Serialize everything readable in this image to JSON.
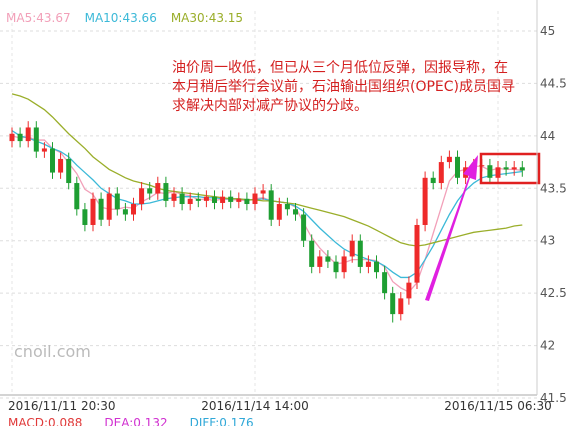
{
  "chart_data": {
    "type": "candlestick",
    "ylim": [
      41.5,
      45
    ],
    "yticks": [
      45,
      44.5,
      44,
      43.5,
      43,
      42.5,
      42,
      41.5
    ],
    "up_color": "#ee2a2a",
    "down_color": "#1e9e32",
    "categories": [
      "2016/11/11 20:30",
      null,
      null,
      null,
      null,
      null,
      null,
      null,
      null,
      null,
      null,
      null,
      null,
      null,
      null,
      null,
      null,
      null,
      null,
      null,
      null,
      null,
      null,
      null,
      null,
      null,
      null,
      null,
      null,
      null,
      "2016/11/14 14:00",
      null,
      null,
      null,
      null,
      null,
      null,
      null,
      null,
      null,
      null,
      null,
      null,
      null,
      null,
      null,
      null,
      null,
      null,
      null,
      null,
      null,
      null,
      null,
      null,
      null,
      null,
      null,
      null,
      null,
      "2016/11/15 06:30",
      null,
      null,
      null
    ],
    "open": [
      43.95,
      44.02,
      43.95,
      44.08,
      43.85,
      43.88,
      43.65,
      43.78,
      43.55,
      43.3,
      43.15,
      43.4,
      43.2,
      43.45,
      43.3,
      43.25,
      43.35,
      43.5,
      43.45,
      43.55,
      43.38,
      43.45,
      43.35,
      43.4,
      43.38,
      43.42,
      43.36,
      43.42,
      43.37,
      43.4,
      43.35,
      43.45,
      43.48,
      43.2,
      43.35,
      43.3,
      43.25,
      43,
      42.75,
      42.85,
      42.8,
      42.7,
      42.85,
      43,
      42.75,
      42.8,
      42.7,
      42.5,
      42.3,
      42.45,
      42.6,
      43.15,
      43.6,
      43.55,
      43.75,
      43.8,
      43.6,
      43.7,
      43.72,
      43.72,
      43.6,
      43.7,
      43.68,
      43.7
    ],
    "high": [
      44.08,
      44.08,
      44.14,
      44.14,
      43.94,
      43.94,
      43.84,
      43.84,
      43.61,
      43.36,
      43.46,
      43.46,
      43.51,
      43.51,
      43.36,
      43.41,
      43.56,
      43.56,
      43.61,
      43.61,
      43.51,
      43.51,
      43.46,
      43.46,
      43.48,
      43.48,
      43.48,
      43.48,
      43.46,
      43.46,
      43.51,
      43.54,
      43.54,
      43.41,
      43.41,
      43.36,
      43.31,
      43.06,
      42.91,
      42.91,
      42.86,
      42.91,
      43.06,
      43.06,
      42.86,
      42.86,
      42.76,
      42.56,
      42.51,
      42.66,
      43.21,
      43.66,
      43.66,
      43.81,
      43.86,
      43.86,
      43.76,
      43.78,
      43.78,
      43.78,
      43.76,
      43.76,
      43.76,
      43.76
    ],
    "low": [
      43.89,
      43.89,
      43.89,
      43.79,
      43.79,
      43.59,
      43.59,
      43.49,
      43.24,
      43.09,
      43.09,
      43.14,
      43.14,
      43.24,
      43.19,
      43.19,
      43.29,
      43.39,
      43.39,
      43.32,
      43.32,
      43.29,
      43.29,
      43.32,
      43.32,
      43.3,
      43.3,
      43.31,
      43.31,
      43.29,
      43.29,
      43.39,
      43.14,
      43.14,
      43.24,
      43.19,
      42.94,
      42.69,
      42.69,
      42.74,
      42.64,
      42.64,
      42.79,
      42.69,
      42.69,
      42.64,
      42.44,
      42.22,
      42.24,
      42.39,
      42.54,
      43.09,
      43.49,
      43.49,
      43.69,
      43.54,
      43.54,
      43.64,
      43.66,
      43.54,
      43.54,
      43.62,
      43.62,
      43.61
    ],
    "close": [
      44.02,
      43.95,
      44.08,
      43.85,
      43.88,
      43.65,
      43.78,
      43.55,
      43.3,
      43.15,
      43.4,
      43.2,
      43.45,
      43.3,
      43.25,
      43.35,
      43.5,
      43.45,
      43.55,
      43.38,
      43.45,
      43.35,
      43.4,
      43.38,
      43.42,
      43.36,
      43.42,
      43.37,
      43.4,
      43.35,
      43.45,
      43.48,
      43.2,
      43.35,
      43.3,
      43.25,
      43,
      42.75,
      42.85,
      42.8,
      42.7,
      42.85,
      43,
      42.75,
      42.8,
      42.7,
      42.5,
      42.3,
      42.45,
      42.6,
      43.15,
      43.6,
      43.55,
      43.75,
      43.8,
      43.6,
      43.7,
      43.72,
      43.72,
      43.6,
      43.7,
      43.68,
      43.7,
      43.67
    ],
    "series": [
      {
        "name": "MA5:43.67",
        "color": "#f2a0b9",
        "values": [
          44.0,
          43.98,
          43.99,
          43.96,
          43.96,
          43.88,
          43.84,
          43.74,
          43.64,
          43.49,
          43.44,
          43.32,
          43.3,
          43.3,
          43.32,
          43.31,
          43.37,
          43.41,
          43.46,
          43.45,
          43.47,
          43.44,
          43.43,
          43.39,
          43.4,
          43.38,
          43.4,
          43.39,
          43.39,
          43.38,
          43.4,
          43.41,
          43.38,
          43.37,
          43.36,
          43.32,
          43.17,
          43.03,
          42.93,
          42.85,
          42.78,
          42.79,
          42.82,
          42.82,
          42.82,
          42.81,
          42.75,
          42.61,
          42.55,
          42.51,
          42.6,
          42.82,
          43.07,
          43.32,
          43.57,
          43.66,
          43.68,
          43.71,
          43.71,
          43.67,
          43.69,
          43.68,
          43.68,
          43.67
        ]
      },
      {
        "name": "MA10:43.66",
        "color": "#3cb9d8",
        "values": [
          44.05,
          44.0,
          43.98,
          43.95,
          43.92,
          43.88,
          43.85,
          43.8,
          43.72,
          43.65,
          43.58,
          43.5,
          43.45,
          43.4,
          43.38,
          43.35,
          43.35,
          43.36,
          43.38,
          43.4,
          43.41,
          43.42,
          43.42,
          43.42,
          43.41,
          43.41,
          43.4,
          43.4,
          43.4,
          43.39,
          43.39,
          43.4,
          43.38,
          43.37,
          43.36,
          43.33,
          43.28,
          43.2,
          43.12,
          43.05,
          42.98,
          42.92,
          42.88,
          42.85,
          42.82,
          42.8,
          42.76,
          42.7,
          42.65,
          42.65,
          42.7,
          42.82,
          42.95,
          43.1,
          43.25,
          43.38,
          43.48,
          43.55,
          43.6,
          43.62,
          43.63,
          43.64,
          43.65,
          43.66
        ]
      },
      {
        "name": "MA30:43.15",
        "color": "#9aae2a",
        "values": [
          44.4,
          44.38,
          44.35,
          44.3,
          44.25,
          44.18,
          44.1,
          44.02,
          43.95,
          43.88,
          43.8,
          43.74,
          43.68,
          43.64,
          43.6,
          43.57,
          43.55,
          43.53,
          43.5,
          43.48,
          43.47,
          43.46,
          43.45,
          43.44,
          43.43,
          43.42,
          43.41,
          43.4,
          43.4,
          43.39,
          43.39,
          43.38,
          43.38,
          43.37,
          43.36,
          43.35,
          43.33,
          43.31,
          43.29,
          43.27,
          43.25,
          43.23,
          43.2,
          43.17,
          43.14,
          43.1,
          43.06,
          43.02,
          42.98,
          42.96,
          42.95,
          42.96,
          42.98,
          43.0,
          43.02,
          43.04,
          43.06,
          43.08,
          43.09,
          43.1,
          43.11,
          43.12,
          43.14,
          43.15
        ]
      }
    ],
    "annotation": [
      "油价周一收低，但已从三个月低位反弹，因报导称，在",
      "本月稍后举行会议前，石油输出国组织(OPEC)成员国寻",
      "求解决内部对减产协议的分歧。"
    ],
    "annotation_color": "#d42020",
    "watermark": "cnoil.com",
    "indicators": [
      {
        "text": "MACD:0.088",
        "color": "#e03a3a"
      },
      {
        "text": "DEA:0.132",
        "color": "#d030d0"
      },
      {
        "text": "DIFF:0.176",
        "color": "#30a8d8"
      }
    ]
  }
}
